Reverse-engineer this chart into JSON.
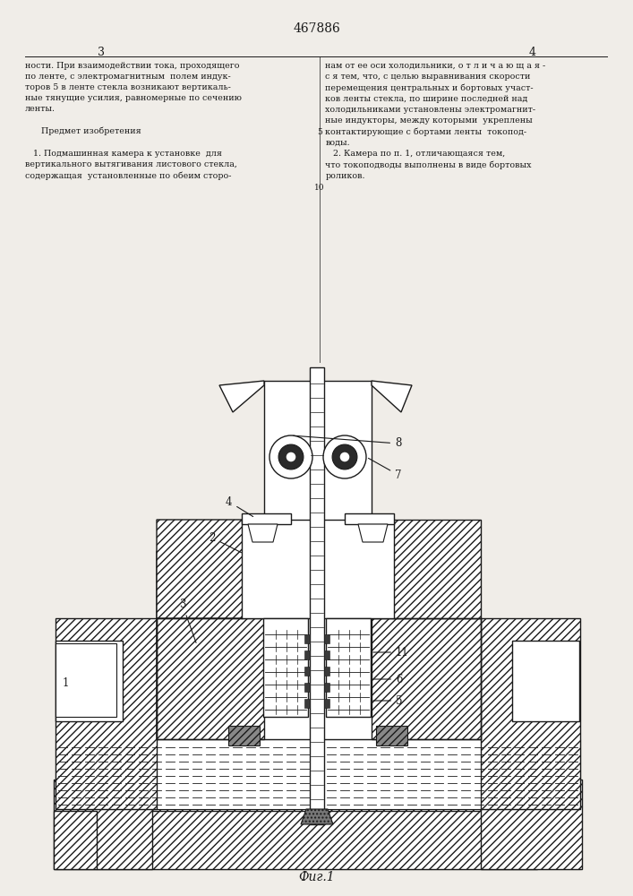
{
  "title": "467886",
  "page_left": "3",
  "page_right": "4",
  "fig_label": "Фиг.1",
  "bg_color": "#f0ede8",
  "line_color": "#1a1a1a",
  "text_color": "#1a1a1a",
  "text_col1": "ности. При взаимодействии тока, проходящего\nпо ленте, с электромагнитным  полем индук-\nторов 5 в ленте стекла возникают вертикаль-\nные тянущие усилия, равномерные по сечению\nленты.\n\n      Предмет изобретения\n\n   1. Подмашинная камера к установке  для\nвертикального вытягивания листового стекла,\nсодержащая  установленные по обеим сторо-",
  "text_col2": "нам от ее оси холодильники, о т л и ч а ю щ а я -\nс я тем, что, с целью выравнивания скорости\nперемещения центральных и бортовых участ-\nков ленты стекла, по ширине последней над\nхолодильниками установлены электромагнит-\nные индукторы, между которыми  укреплены\nконтактирующие с бортами ленты  токопод-\nводы.\n   2. Камера по п. 1, отличающаяся тем,\nчто токоподводы выполнены в виде бортовых\nроликов."
}
